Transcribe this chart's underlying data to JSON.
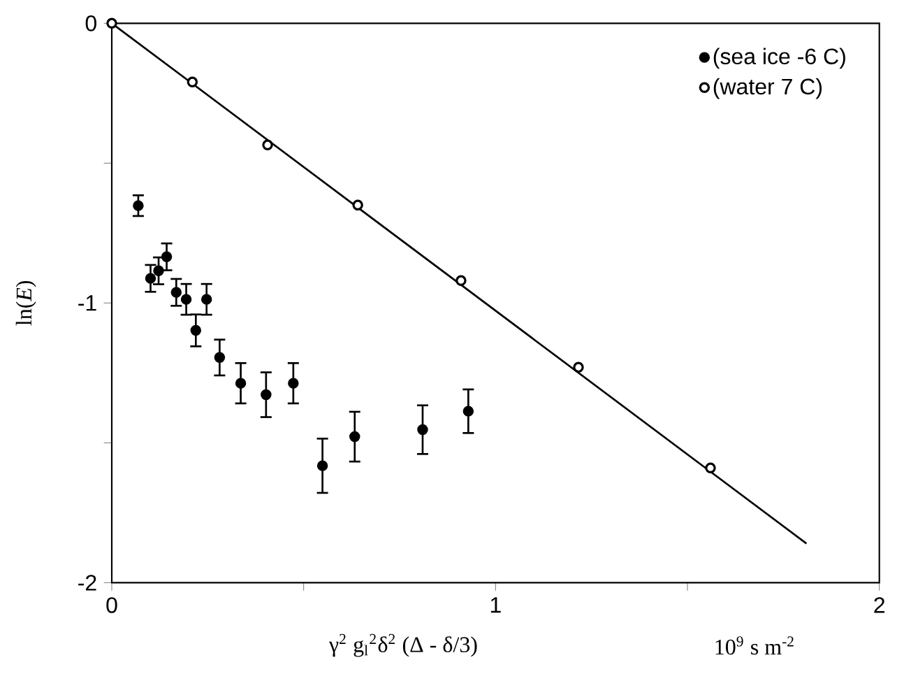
{
  "chart_data": {
    "type": "scatter",
    "xlabel": "γ$^{2}$ g$_{l}$$^{2}$δ$^{2}$  (Δ - δ/3)",
    "ylabel": "ln(*E*)",
    "annotations": [
      "10$^{9}$  s  m$^{-2}$"
    ],
    "xlim": [
      0,
      2
    ],
    "ylim": [
      -2,
      0
    ],
    "xticks": [
      0,
      {
        "value": 0.5,
        "label": null
      },
      1,
      {
        "value": 1.5,
        "label": null
      },
      2
    ],
    "yticks": [
      0,
      {
        "value": -0.5,
        "label": null
      },
      -1,
      {
        "value": -1.5,
        "label": null
      },
      -2
    ],
    "legend": "top right",
    "grid": false,
    "series": [
      {
        "name": "(sea ice -6 C)",
        "color": "#000000",
        "marker": "circle",
        "x": [
          0.069,
          0.101,
          0.122,
          0.143,
          0.168,
          0.194,
          0.219,
          0.247,
          0.281,
          0.336,
          0.402,
          0.473,
          0.549,
          0.633,
          0.81,
          0.929
        ],
        "values": [
          -0.652,
          -0.912,
          -0.885,
          -0.835,
          -0.962,
          -0.987,
          -1.098,
          -0.987,
          -1.195,
          -1.287,
          -1.328,
          -1.287,
          -1.582,
          -1.478,
          -1.453,
          -1.387
        ],
        "errors": [
          0.037,
          0.048,
          0.048,
          0.048,
          0.048,
          0.055,
          0.057,
          0.055,
          0.064,
          0.072,
          0.08,
          0.072,
          0.097,
          0.089,
          0.087,
          0.078
        ]
      },
      {
        "name": "(water 7 C)",
        "color": "#000000",
        "marker": "circle",
        "x": [
          0,
          0.21,
          0.406,
          0.641,
          0.91,
          1.216,
          1.56
        ],
        "values": [
          0,
          -0.21,
          -0.435,
          -0.65,
          -0.92,
          -1.23,
          -1.59
        ]
      },
      {
        "type": "line",
        "color": "#000000",
        "marker": "none",
        "line_style": "solid",
        "x": [
          0,
          1.81
        ],
        "values": [
          0,
          -1.86
        ]
      }
    ]
  }
}
